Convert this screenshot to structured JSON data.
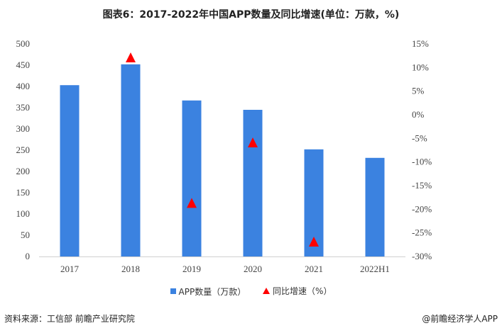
{
  "chart_data": {
    "type": "bar",
    "title": "图表6：2017-2022年中国APP数量及同比增速(单位：万款，%)",
    "categories": [
      "2017",
      "2018",
      "2019",
      "2020",
      "2021",
      "2022H1"
    ],
    "series": [
      {
        "name": "APP数量（万款）",
        "type": "bar",
        "axis": "left",
        "color": "#3b82e0",
        "values": [
          403,
          452,
          367,
          345,
          252,
          232
        ]
      },
      {
        "name": "同比增速（%）",
        "type": "scatter",
        "marker": "triangle",
        "axis": "right",
        "color": "#ff0000",
        "values": [
          null,
          12.0,
          -18.8,
          -6.0,
          -27.0,
          null
        ]
      }
    ],
    "ylim": [
      0,
      500
    ],
    "yticks": [
      "0",
      "50",
      "100",
      "150",
      "200",
      "250",
      "300",
      "350",
      "400",
      "450",
      "500"
    ],
    "y2lim": [
      -30,
      15
    ],
    "y2ticks": [
      "-30%",
      "-25%",
      "-20%",
      "-15%",
      "-10%",
      "-5%",
      "0%",
      "5%",
      "10%",
      "15%"
    ],
    "legend": "bottom",
    "grid": false
  },
  "footer": {
    "source": "资料来源：工信部 前瞻产业研究院",
    "credit": "@前瞻经济学人APP"
  }
}
